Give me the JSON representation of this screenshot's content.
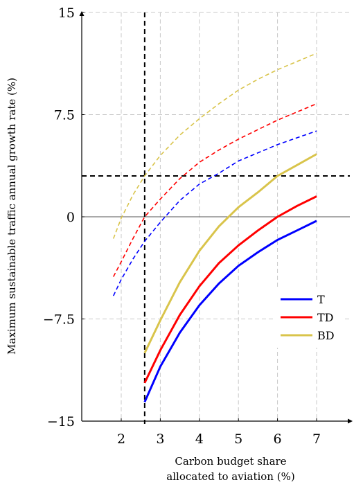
{
  "chart_data": {
    "type": "line",
    "xlabel": [
      "Carbon budget share",
      "allocated to aviation (%)"
    ],
    "ylabel": "Maximum sustainable traffic annual growth rate (%)",
    "xlim": [
      1,
      8
    ],
    "ylim": [
      -15,
      15
    ],
    "x_ticks": [
      2,
      3,
      4,
      5,
      6,
      7
    ],
    "x_tick_labels": [
      "2",
      "3",
      "4",
      "5",
      "6",
      "7"
    ],
    "y_ticks": [
      -15,
      -7.5,
      0,
      7.5,
      15
    ],
    "y_tick_labels": [
      "−15",
      "−7.5",
      "0",
      "7.5",
      "15"
    ],
    "grid": true,
    "legend_position": "lower-right",
    "reference_lines": {
      "vertical_x": 2.6,
      "horizontal_y": 3
    },
    "series": [
      {
        "name": "T",
        "color": "#0000ff",
        "style": "solid",
        "x": [
          2.6,
          3.0,
          3.5,
          4.0,
          4.5,
          5.0,
          5.5,
          6.0,
          6.5,
          7.0
        ],
        "y": [
          -13.6,
          -11.0,
          -8.5,
          -6.5,
          -4.9,
          -3.6,
          -2.6,
          -1.7,
          -1.0,
          -0.3
        ]
      },
      {
        "name": "TD",
        "color": "#ff0000",
        "style": "solid",
        "x": [
          2.6,
          3.0,
          3.5,
          4.0,
          4.5,
          5.0,
          5.5,
          6.0,
          6.5,
          7.0
        ],
        "y": [
          -12.2,
          -9.8,
          -7.2,
          -5.1,
          -3.4,
          -2.1,
          -1.0,
          0.0,
          0.8,
          1.5
        ]
      },
      {
        "name": "BD",
        "color": "#d9c44b",
        "style": "solid",
        "x": [
          2.6,
          3.0,
          3.5,
          4.0,
          4.5,
          5.0,
          5.5,
          6.0,
          6.5,
          7.0
        ],
        "y": [
          -10.0,
          -7.6,
          -4.8,
          -2.5,
          -0.7,
          0.7,
          1.8,
          3.0,
          3.8,
          4.6
        ]
      },
      {
        "name": "",
        "color": "#0000ff",
        "style": "dashed",
        "x": [
          1.8,
          2.0,
          2.3,
          2.6,
          3.0,
          3.5,
          4.0,
          4.5,
          5.0,
          5.5,
          6.0,
          6.5,
          7.0
        ],
        "y": [
          -5.8,
          -4.6,
          -3.1,
          -1.8,
          -0.4,
          1.2,
          2.4,
          3.2,
          4.1,
          4.7,
          5.3,
          5.8,
          6.3
        ]
      },
      {
        "name": "",
        "color": "#ff0000",
        "style": "dashed",
        "x": [
          1.8,
          2.0,
          2.3,
          2.6,
          3.0,
          3.5,
          4.0,
          4.5,
          5.0,
          5.5,
          6.0,
          6.5,
          7.0
        ],
        "y": [
          -4.4,
          -3.3,
          -1.6,
          0.0,
          1.3,
          2.8,
          4.0,
          4.9,
          5.7,
          6.4,
          7.1,
          7.7,
          8.3
        ]
      },
      {
        "name": "",
        "color": "#d9c44b",
        "style": "dashed",
        "x": [
          1.8,
          2.0,
          2.3,
          2.6,
          3.0,
          3.5,
          4.0,
          4.5,
          5.0,
          5.5,
          6.0,
          6.5,
          7.0
        ],
        "y": [
          -1.6,
          -0.1,
          1.6,
          3.0,
          4.5,
          6.0,
          7.2,
          8.3,
          9.3,
          10.1,
          10.8,
          11.4,
          12.0
        ]
      }
    ]
  }
}
